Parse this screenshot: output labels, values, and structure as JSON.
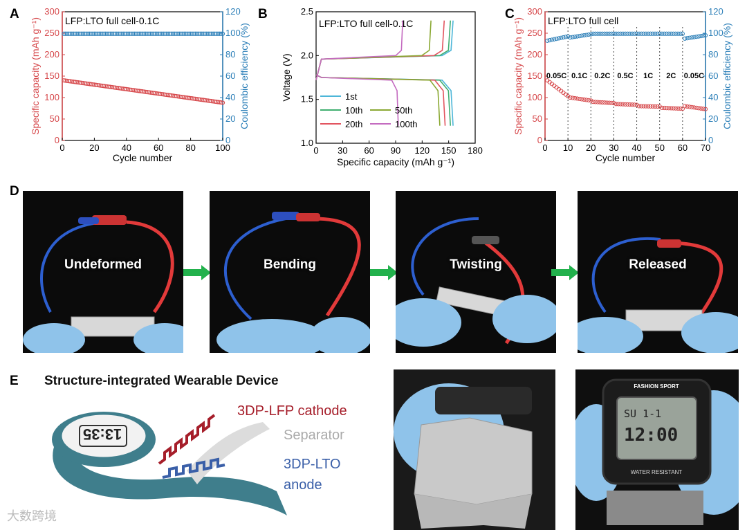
{
  "panel_labels": {
    "a": "A",
    "b": "B",
    "c": "C",
    "d": "D",
    "e": "E"
  },
  "colors": {
    "capacity": "#d6474a",
    "ce": "#2c7fb8",
    "arrow": "#22b14c",
    "cathode": "#a61e2a",
    "anode": "#3a5fa8",
    "separator": "#bbbbbb",
    "watch_band": "#3f7e8c"
  },
  "chart_data": [
    {
      "type": "scatter",
      "panel": "A",
      "title": "LFP:LTO full cell-0.1C",
      "xlabel": "Cycle number",
      "ylabel": "Specific capacity (mAh g⁻¹)",
      "y2label": "Coulombic efficiency (%)",
      "xlim": [
        0,
        100
      ],
      "ylim": [
        0,
        300
      ],
      "y2lim": [
        0,
        120
      ],
      "xticks": [
        0,
        20,
        40,
        60,
        80,
        100
      ],
      "yticks": [
        0,
        50,
        100,
        150,
        200,
        250,
        300
      ],
      "y2ticks": [
        0,
        20,
        40,
        60,
        80,
        100,
        120
      ],
      "series": [
        {
          "name": "Specific capacity",
          "axis": "left",
          "x_range": [
            1,
            100
          ],
          "start": 140,
          "end": 88
        },
        {
          "name": "Coulombic efficiency",
          "axis": "right",
          "x_range": [
            1,
            100
          ],
          "start": 99.5,
          "end": 99.5
        }
      ]
    },
    {
      "type": "line",
      "panel": "B",
      "title": "LFP:LTO full cell-0.1C",
      "xlabel": "Specific capacity (mAh g⁻¹)",
      "ylabel": "Voltage (V)",
      "xlim": [
        0,
        180
      ],
      "ylim": [
        1.0,
        2.5
      ],
      "xticks": [
        0,
        30,
        60,
        90,
        120,
        150,
        180
      ],
      "yticks": [
        1.0,
        1.5,
        2.0,
        2.5
      ],
      "series": [
        {
          "name": "1st",
          "color": "#4db6d8",
          "charge_end": 155,
          "discharge_end": 155
        },
        {
          "name": "10th",
          "color": "#3fae6f",
          "charge_end": 152,
          "discharge_end": 152
        },
        {
          "name": "20th",
          "color": "#e2545f",
          "charge_end": 145,
          "discharge_end": 146
        },
        {
          "name": "50th",
          "color": "#8aa832",
          "charge_end": 130,
          "discharge_end": 140
        },
        {
          "name": "100th",
          "color": "#c46bc0",
          "charge_end": 98,
          "discharge_end": 93
        }
      ],
      "legend": [
        "1st",
        "10th",
        "20th",
        "50th",
        "100th"
      ]
    },
    {
      "type": "scatter",
      "panel": "C",
      "title": "LFP:LTO full cell",
      "xlabel": "Cycle number",
      "ylabel": "Specific capacity (mAh g⁻¹)",
      "y2label": "Coulombic efficiency (%)",
      "xlim": [
        0,
        70
      ],
      "ylim": [
        0,
        300
      ],
      "y2lim": [
        0,
        120
      ],
      "xticks": [
        0,
        10,
        20,
        30,
        40,
        50,
        60,
        70
      ],
      "yticks": [
        0,
        50,
        100,
        150,
        200,
        250,
        300
      ],
      "y2ticks": [
        0,
        20,
        40,
        60,
        80,
        100,
        120
      ],
      "rate_labels": [
        "0.05C",
        "0.1C",
        "0.2C",
        "0.5C",
        "1C",
        "2C",
        "0.05C"
      ],
      "dividers": [
        10,
        20,
        30,
        40,
        50,
        60
      ],
      "capacity_segments": [
        {
          "from": 1,
          "to": 10,
          "start": 140,
          "end": 103
        },
        {
          "from": 11,
          "to": 20,
          "start": 100,
          "end": 93
        },
        {
          "from": 21,
          "to": 30,
          "start": 90,
          "end": 87
        },
        {
          "from": 31,
          "to": 40,
          "start": 85,
          "end": 83
        },
        {
          "from": 41,
          "to": 50,
          "start": 80,
          "end": 79
        },
        {
          "from": 51,
          "to": 60,
          "start": 76,
          "end": 74
        },
        {
          "from": 61,
          "to": 70,
          "start": 80,
          "end": 73
        }
      ],
      "ce_segments": [
        {
          "from": 1,
          "to": 10,
          "start": 93,
          "end": 97
        },
        {
          "from": 11,
          "to": 20,
          "start": 96,
          "end": 99
        },
        {
          "from": 21,
          "to": 60,
          "start": 99.5,
          "end": 99.5
        },
        {
          "from": 61,
          "to": 70,
          "start": 95,
          "end": 98
        }
      ]
    }
  ],
  "photos": {
    "captions": [
      "Undeformed",
      "Bending",
      "Twisting",
      "Released"
    ]
  },
  "section_e": {
    "title": "Structure-integrated Wearable Device",
    "cathode": "3DP-LFP cathode",
    "separator": "Separator",
    "anode_line1": "3DP-LTO",
    "anode_line2": "anode",
    "watch_display": "13:35",
    "watch_brand": "FASHION SPORT",
    "watch_time": "12:00",
    "watch_day": "SU 1-1",
    "watch_resist": "WATER RESISTANT"
  },
  "watermark": "大数跨境"
}
